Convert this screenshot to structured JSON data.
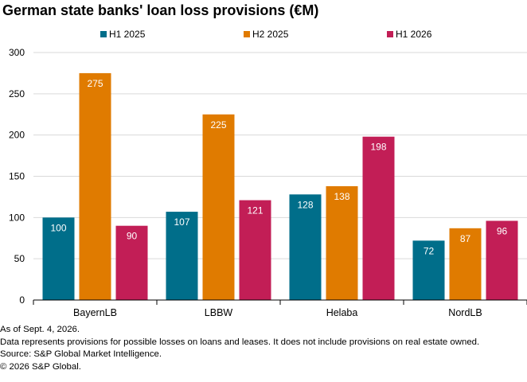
{
  "chart_data": {
    "type": "bar",
    "title": "German state banks' loan loss provisions (€M)",
    "categories": [
      "BayernLB",
      "LBBW",
      "Helaba",
      "NordLB"
    ],
    "series": [
      {
        "name": "H1 2025",
        "color": "#006e8a",
        "values": [
          100,
          107,
          128,
          72
        ],
        "labels": [
          "100",
          "107",
          "128",
          "72"
        ]
      },
      {
        "name": "H2 2025",
        "color": "#e07b00",
        "values": [
          275,
          225,
          138,
          87
        ],
        "labels": [
          "275",
          "225",
          "138",
          "87"
        ]
      },
      {
        "name": "H1 2026",
        "color": "#c21e56",
        "values": [
          90,
          121,
          198,
          96
        ],
        "labels": [
          "90",
          "121",
          "198",
          "96"
        ]
      }
    ],
    "ylim": [
      0,
      300
    ],
    "yticks": [
      0,
      50,
      100,
      150,
      200,
      250,
      300
    ],
    "grid": true,
    "legend": "top-center",
    "gridline_color": "#d9d9d9",
    "data_label_color": "#ffffff"
  },
  "notes": [
    "As of Sept. 4, 2026.",
    "Data represents provisions for possible losses on loans and leases. It does not include provisions on real estate owned.",
    "Source: S&P Global Market Intelligence.",
    "© 2026 S&P Global."
  ]
}
